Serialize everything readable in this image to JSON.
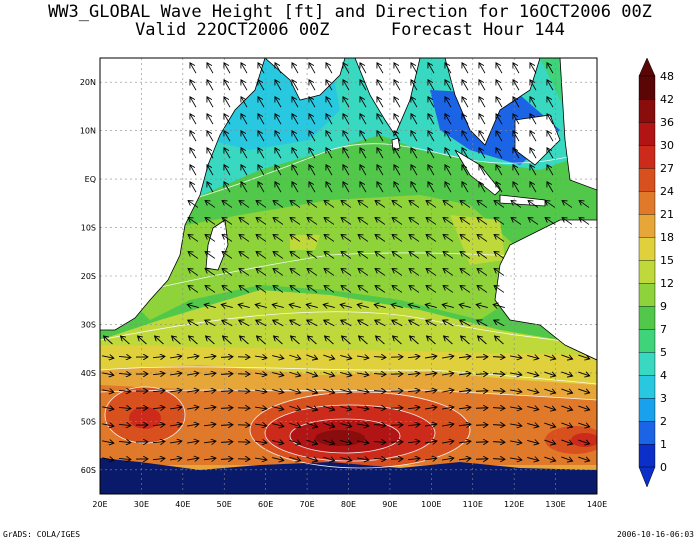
{
  "title_line1": "WW3_GLOBAL Wave Height [ft] and Direction for 16OCT2006 00Z",
  "title_line2": "Valid 22OCT2006 00Z      Forecast Hour 144",
  "footer_left": "GrADS: COLA/IGES",
  "footer_right": "2006-10-16-06:03",
  "map": {
    "lon_labels": [
      "20E",
      "30E",
      "40E",
      "50E",
      "60E",
      "70E",
      "80E",
      "90E",
      "100E",
      "110E",
      "120E",
      "130E",
      "140E"
    ],
    "lat_labels": [
      "20N",
      "10N",
      "EQ",
      "10S",
      "20S",
      "30S",
      "40S",
      "50S",
      "60S"
    ],
    "lon_range": [
      20,
      140
    ],
    "lat_range": [
      -65,
      25
    ],
    "arrow_direction": "mostly toward east in southern ocean, toward northwest in tropics"
  },
  "colorbar": {
    "levels": [
      "0",
      "1",
      "2",
      "3",
      "4",
      "5",
      "7",
      "9",
      "12",
      "15",
      "18",
      "21",
      "24",
      "27",
      "30",
      "36",
      "42",
      "48"
    ],
    "colors": [
      "#0b2fc8",
      "#1c64e6",
      "#18a2ee",
      "#28c9e0",
      "#39d8c0",
      "#3fd47a",
      "#52c84a",
      "#8ed339",
      "#bfd83a",
      "#e0d03c",
      "#e6a738",
      "#e07a2a",
      "#d9501f",
      "#cc2a1a",
      "#b01414",
      "#8a0d0d",
      "#5a0606"
    ]
  }
}
